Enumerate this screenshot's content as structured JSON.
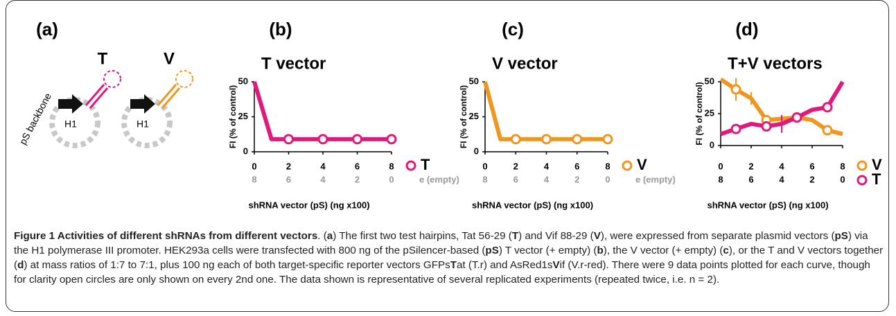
{
  "panel_labels": [
    "(a)",
    "(b)",
    "(c)",
    "(d)"
  ],
  "diagram": {
    "labels": {
      "t": "T",
      "v": "V",
      "promoter_left": "H1",
      "promoter_right": "H1",
      "backbone": "pS backbone"
    }
  },
  "chart_data": [
    {
      "type": "line",
      "title": "T vector",
      "ylabel": "FI (% of control)",
      "xlabel": "shRNA vector (pS) (ng x100)",
      "x": [
        0,
        1,
        2,
        3,
        4,
        5,
        6,
        7,
        8
      ],
      "xlim": [
        0,
        8
      ],
      "xticks": [
        0,
        2,
        4,
        6,
        8
      ],
      "x2ticks": [
        {
          "value": 0,
          "label": "8"
        },
        {
          "value": 2,
          "label": "6"
        },
        {
          "value": 4,
          "label": "4"
        },
        {
          "value": 6,
          "label": "2"
        },
        {
          "value": 8,
          "label": "0"
        }
      ],
      "x2_color": "#999999",
      "x2_name": "e (empty)",
      "ylim": [
        0,
        50
      ],
      "yticks": [
        0,
        25,
        50
      ],
      "series": [
        {
          "name": "T",
          "color": "#e0197d",
          "values": [
            50,
            9,
            9,
            9,
            9,
            9,
            9,
            9,
            9
          ],
          "marker_x": [
            2,
            4,
            6,
            8
          ]
        }
      ]
    },
    {
      "type": "line",
      "title": "V vector",
      "ylabel": "FI (% of control)",
      "xlabel": "shRNA vector (pS) (ng x100)",
      "x": [
        0,
        1,
        2,
        3,
        4,
        5,
        6,
        7,
        8
      ],
      "xlim": [
        0,
        8
      ],
      "xticks": [
        0,
        2,
        4,
        6,
        8
      ],
      "x2ticks": [
        {
          "value": 0,
          "label": "8"
        },
        {
          "value": 2,
          "label": "6"
        },
        {
          "value": 4,
          "label": "4"
        },
        {
          "value": 6,
          "label": "2"
        },
        {
          "value": 8,
          "label": "0"
        }
      ],
      "x2_color": "#999999",
      "x2_name": "e (empty)",
      "ylim": [
        0,
        50
      ],
      "yticks": [
        0,
        25,
        50
      ],
      "series": [
        {
          "name": "V",
          "color": "#f0961e",
          "values": [
            50,
            9,
            9,
            9,
            9,
            9,
            9,
            9,
            9
          ],
          "marker_x": [
            2,
            4,
            6,
            8
          ]
        }
      ]
    },
    {
      "type": "line",
      "title": "T+V vectors",
      "ylabel": "FI (% of control)",
      "xlabel": "shRNA vector (pS) (ng x100)",
      "x": [
        0,
        1,
        2,
        3,
        4,
        5,
        6,
        7,
        8
      ],
      "xlim": [
        0,
        8
      ],
      "xticks": [
        0,
        2,
        4,
        6,
        8
      ],
      "x2ticks": [
        {
          "value": 0,
          "label": "8"
        },
        {
          "value": 2,
          "label": "6"
        },
        {
          "value": 4,
          "label": "4"
        },
        {
          "value": 6,
          "label": "2"
        },
        {
          "value": 8,
          "label": "0"
        }
      ],
      "x2_color": "#000000",
      "ylim": [
        0,
        50
      ],
      "yticks": [
        0,
        25,
        50
      ],
      "series": [
        {
          "name": "V",
          "color": "#f0961e",
          "values": [
            52,
            44,
            37,
            20,
            21,
            22,
            20,
            12,
            9
          ],
          "errors": [
            null,
            9,
            5,
            null,
            null,
            null,
            null,
            null,
            null
          ],
          "marker_x": [
            1,
            3,
            5,
            7
          ]
        },
        {
          "name": "T",
          "color": "#e0197d",
          "values": [
            9,
            13,
            17,
            15,
            17,
            22,
            28,
            30,
            50
          ],
          "errors": [
            null,
            null,
            null,
            null,
            7,
            null,
            null,
            null,
            null
          ],
          "marker_x": [
            1,
            3,
            5,
            7
          ]
        }
      ]
    }
  ],
  "caption": {
    "runs": [
      {
        "text": "Figure 1 Activities of different shRNAs from different vectors",
        "bold": true
      },
      {
        "text": ". ("
      },
      {
        "text": "a",
        "bold": true
      },
      {
        "text": ") The first two test hairpins, Tat 56-29 ("
      },
      {
        "text": "T",
        "bold": true
      },
      {
        "text": ") and Vif 88-29 ("
      },
      {
        "text": "V",
        "bold": true
      },
      {
        "text": "), were expressed from separate plasmid vectors ("
      },
      {
        "text": "pS",
        "bold": true
      },
      {
        "text": ") via the H1 polymerase III promoter. HEK293a cells were transfected with 800 ng of the pSilencer-based ("
      },
      {
        "text": "pS",
        "bold": true
      },
      {
        "text": ") T vector (+ empty) ("
      },
      {
        "text": "b",
        "bold": true
      },
      {
        "text": "), the V vector (+ empty) ("
      },
      {
        "text": "c",
        "bold": true
      },
      {
        "text": "), or the T and V vectors together ("
      },
      {
        "text": "d",
        "bold": true
      },
      {
        "text": ") at mass ratios of 1:7 to 7:1, plus 100 ng each of both target-specific reporter vectors GFPs"
      },
      {
        "text": "T",
        "bold": true
      },
      {
        "text": "at (T.r) and AsRed1s"
      },
      {
        "text": "V",
        "bold": true
      },
      {
        "text": "if (V.r-red). There were 9 data points plotted for each curve, though for clarity open circles are only shown on every 2nd one. The data shown is representative of several replicated experiments (repeated twice, i.e. n = 2)."
      }
    ]
  }
}
